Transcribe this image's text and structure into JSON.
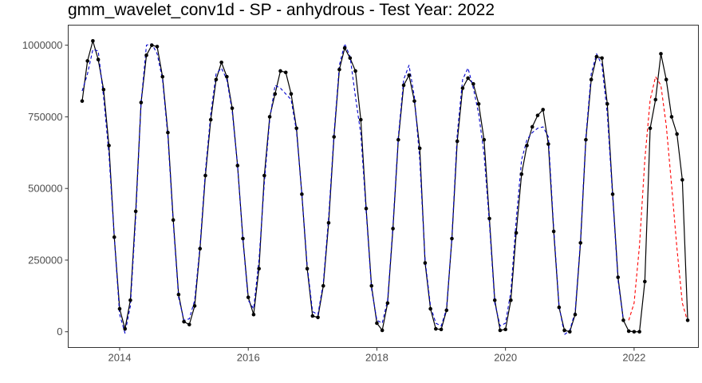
{
  "chart_data": {
    "type": "line",
    "title": "gmm_wavelet_conv1d - SP - anhydrous - Test Year: 2022",
    "xlabel": "",
    "ylabel": "",
    "x_range": [
      2013.2,
      2023.0
    ],
    "ylim": [
      -55000,
      1070000
    ],
    "x_ticks": [
      {
        "value": 2014,
        "label": "2014"
      },
      {
        "value": 2016,
        "label": "2016"
      },
      {
        "value": 2018,
        "label": "2018"
      },
      {
        "value": 2020,
        "label": "2020"
      },
      {
        "value": 2022,
        "label": "2022"
      }
    ],
    "y_ticks": [
      {
        "value": 0,
        "label": "0"
      },
      {
        "value": 250000,
        "label": "250000"
      },
      {
        "value": 500000,
        "label": "500000"
      },
      {
        "value": 750000,
        "label": "750000"
      },
      {
        "value": 1000000,
        "label": "1000000"
      }
    ],
    "grid": false,
    "legend": "none",
    "x_start_year": 2013,
    "x_start_month": 6,
    "series": [
      {
        "role": "actual",
        "style": "solid-with-points",
        "color": "#000000",
        "values": [
          805000,
          945000,
          1015000,
          950000,
          845000,
          650000,
          330000,
          80000,
          10000,
          110000,
          420000,
          800000,
          965000,
          1000000,
          995000,
          890000,
          695000,
          390000,
          130000,
          35000,
          25000,
          90000,
          290000,
          545000,
          740000,
          880000,
          940000,
          890000,
          780000,
          580000,
          325000,
          120000,
          60000,
          220000,
          545000,
          750000,
          830000,
          910000,
          905000,
          830000,
          710000,
          480000,
          220000,
          55000,
          50000,
          160000,
          380000,
          680000,
          915000,
          990000,
          955000,
          910000,
          740000,
          430000,
          160000,
          30000,
          5000,
          100000,
          360000,
          670000,
          860000,
          895000,
          805000,
          640000,
          240000,
          80000,
          10000,
          8000,
          75000,
          325000,
          665000,
          850000,
          885000,
          865000,
          795000,
          670000,
          395000,
          110000,
          5000,
          8000,
          110000,
          345000,
          550000,
          650000,
          715000,
          755000,
          775000,
          655000,
          350000,
          85000,
          5000,
          0,
          60000,
          310000,
          670000,
          880000,
          960000,
          955000,
          795000,
          480000,
          190000,
          40000,
          2000,
          0,
          0,
          175000,
          710000,
          810000,
          970000,
          880000,
          750000,
          690000,
          530000,
          40000
        ]
      },
      {
        "role": "fitted",
        "style": "dashed",
        "color": "#0000cc",
        "values": [
          840000,
          900000,
          985000,
          980000,
          820000,
          620000,
          330000,
          60000,
          -5000,
          90000,
          400000,
          800000,
          1000000,
          1005000,
          970000,
          880000,
          680000,
          380000,
          120000,
          40000,
          45000,
          110000,
          300000,
          560000,
          760000,
          900000,
          920000,
          880000,
          770000,
          580000,
          320000,
          110000,
          80000,
          250000,
          520000,
          740000,
          860000,
          850000,
          830000,
          810000,
          700000,
          480000,
          230000,
          70000,
          60000,
          170000,
          400000,
          690000,
          930000,
          1005000,
          960000,
          820000,
          690000,
          420000,
          150000,
          40000,
          30000,
          110000,
          370000,
          680000,
          880000,
          930000,
          820000,
          600000,
          250000,
          90000,
          30000,
          20000,
          80000,
          330000,
          690000,
          880000,
          920000,
          850000,
          760000,
          620000,
          380000,
          100000,
          20000,
          30000,
          140000,
          390000,
          600000,
          670000,
          695000,
          710000,
          715000,
          680000,
          360000,
          90000,
          -10000,
          5000,
          70000,
          320000,
          680000,
          900000,
          970000,
          930000,
          760000,
          470000,
          180000,
          40000
        ]
      },
      {
        "role": "forecast",
        "style": "dashed",
        "color": "#ff0000",
        "start_index": 102,
        "values": [
          40000,
          100000,
          300000,
          600000,
          810000,
          890000,
          860000,
          720000,
          510000,
          290000,
          100000,
          35000
        ]
      }
    ]
  }
}
